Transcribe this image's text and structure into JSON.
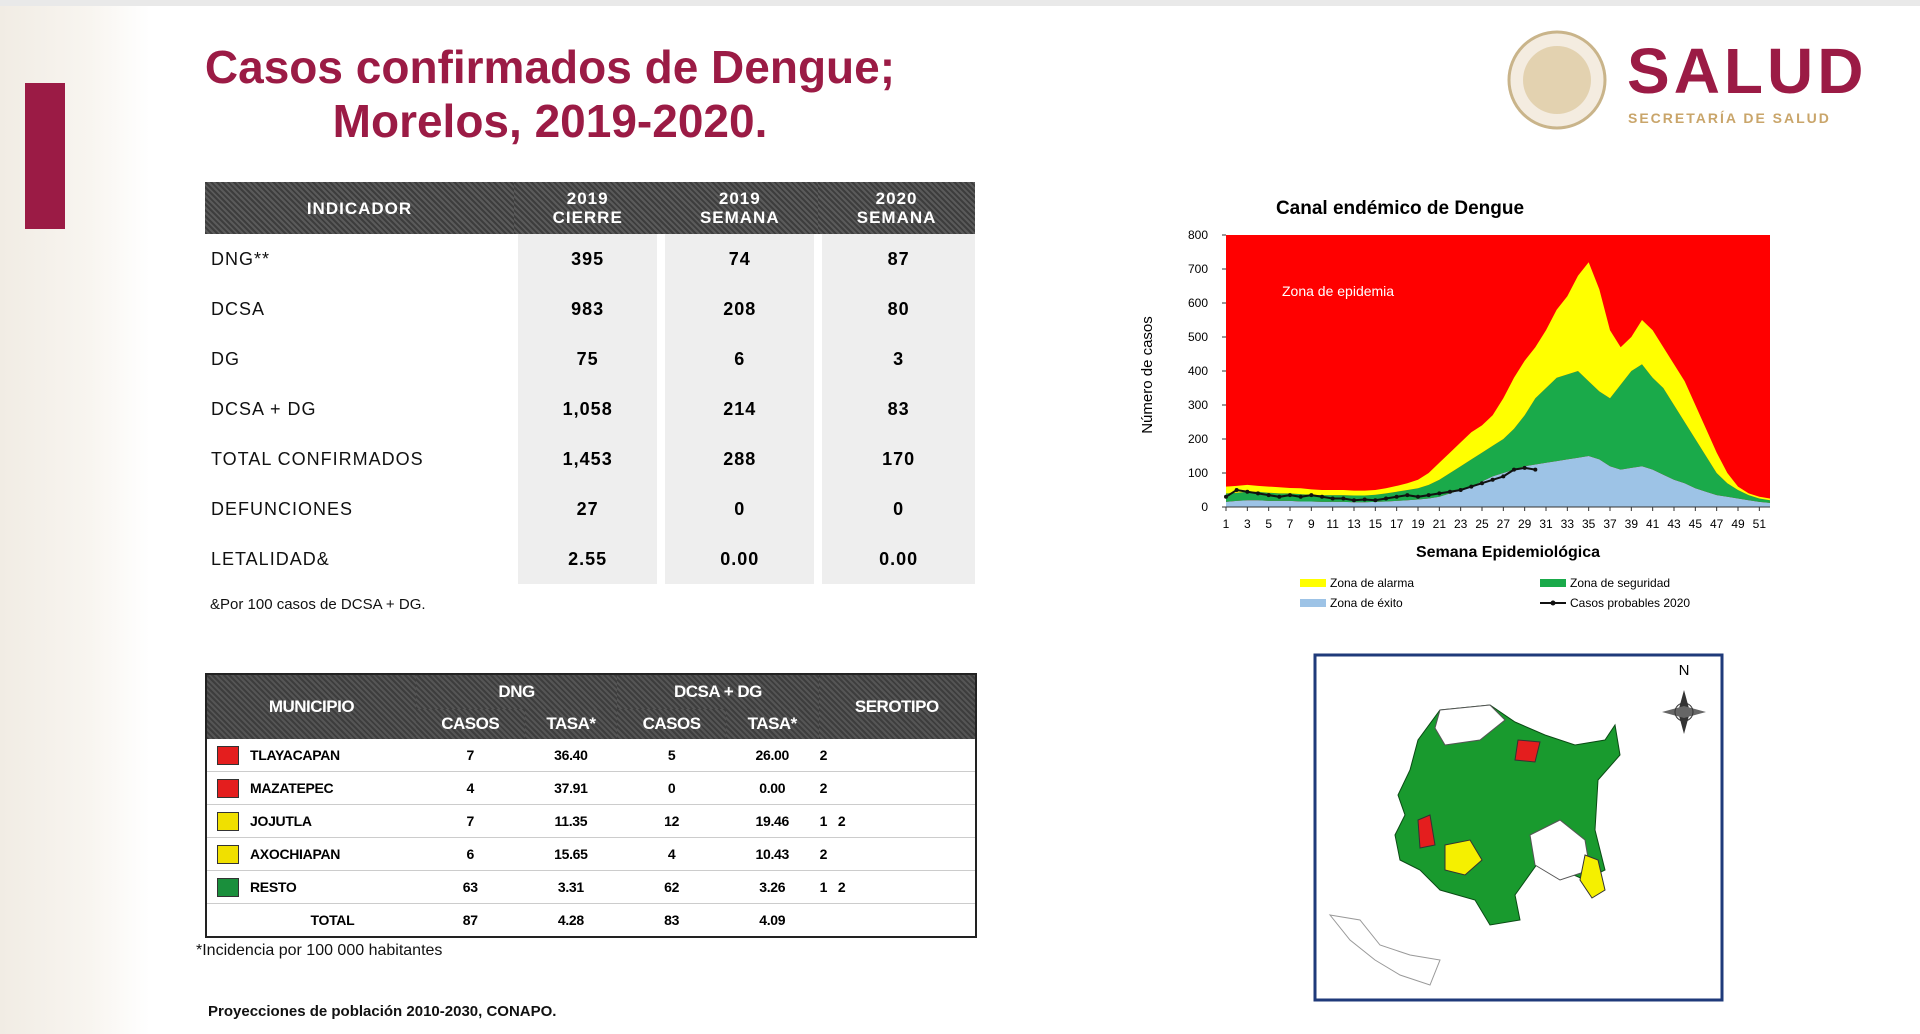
{
  "header": {
    "title_line1": "Casos confirmados de Dengue;",
    "title_line2": "Morelos, 2019-2020.",
    "logo_title": "SALUD",
    "logo_subtitle": "SECRETARÍA DE SALUD"
  },
  "indicator_table": {
    "columns": [
      "INDICADOR",
      "2019 CIERRE",
      "2019 SEMANA",
      "2020 SEMANA"
    ],
    "rows": [
      [
        "DNG**",
        "395",
        "74",
        "87"
      ],
      [
        "DCSA",
        "983",
        "208",
        "80"
      ],
      [
        "DG",
        "75",
        "6",
        "3"
      ],
      [
        "DCSA + DG",
        "1,058",
        "214",
        "83"
      ],
      [
        "TOTAL CONFIRMADOS",
        "1,453",
        "288",
        "170"
      ],
      [
        "DEFUNCIONES",
        "27",
        "0",
        "0"
      ],
      [
        "LETALIDAD&",
        "2.55",
        "0.00",
        "0.00"
      ]
    ],
    "footnote": "&Por 100 casos de DCSA + DG."
  },
  "municipio_table": {
    "header": {
      "municipio": "MUNICIPIO",
      "dng": "DNG",
      "dcsa_dg": "DCSA + DG",
      "serotipo": "SEROTIPO",
      "casos": "CASOS",
      "tasa": "TASA*"
    },
    "rows": [
      {
        "color": "#e41e1e",
        "cells": [
          "TLAYACAPAN",
          "7",
          "36.40",
          "5",
          "26.00",
          "2"
        ]
      },
      {
        "color": "#e41e1e",
        "cells": [
          "MAZATEPEC",
          "4",
          "37.91",
          "0",
          "0.00",
          "2"
        ]
      },
      {
        "color": "#f0e000",
        "cells": [
          "JOJUTLA",
          "7",
          "11.35",
          "12",
          "19.46",
          "1   2"
        ]
      },
      {
        "color": "#f0e000",
        "cells": [
          "AXOCHIAPAN",
          "6",
          "15.65",
          "4",
          "10.43",
          "2"
        ]
      },
      {
        "color": "#1a8f3c",
        "cells": [
          "RESTO",
          "63",
          "3.31",
          "62",
          "3.26",
          "1   2"
        ]
      },
      {
        "cells": [
          "TOTAL",
          "87",
          "4.28",
          "83",
          "4.09"
        ]
      }
    ],
    "note": "*Incidencia por 100 000 habitantes",
    "source": "Proyecciones de población 2010-2030,  CONAPO."
  },
  "chart_data": {
    "type": "area",
    "title": "Canal endémico de Dengue",
    "xlabel": "Semana Epidemiológica",
    "ylabel": "Número de casos",
    "annotation": "Zona de epidemia",
    "epidemic_color": "#ff0000",
    "stacked": true,
    "x": [
      1,
      2,
      3,
      4,
      5,
      6,
      7,
      8,
      9,
      10,
      11,
      12,
      13,
      14,
      15,
      16,
      17,
      18,
      19,
      20,
      21,
      22,
      23,
      24,
      25,
      26,
      27,
      28,
      29,
      30,
      31,
      32,
      33,
      34,
      35,
      36,
      37,
      38,
      39,
      40,
      41,
      42,
      43,
      44,
      45,
      46,
      47,
      48,
      49,
      50,
      51,
      52
    ],
    "xlim": [
      1,
      52
    ],
    "xticks": [
      1,
      3,
      5,
      7,
      9,
      11,
      13,
      15,
      17,
      19,
      21,
      23,
      25,
      27,
      29,
      31,
      33,
      35,
      37,
      39,
      41,
      43,
      45,
      47,
      49,
      51
    ],
    "ylim": [
      0,
      800
    ],
    "yticks": [
      0,
      100,
      200,
      300,
      400,
      500,
      600,
      700,
      800
    ],
    "series": [
      {
        "name": "Zona de éxito",
        "color": "#9dc3e6",
        "values": [
          15,
          18,
          20,
          20,
          18,
          18,
          18,
          16,
          16,
          15,
          15,
          15,
          14,
          14,
          15,
          16,
          18,
          20,
          22,
          25,
          30,
          40,
          50,
          60,
          75,
          90,
          100,
          110,
          120,
          125,
          130,
          135,
          140,
          145,
          150,
          140,
          120,
          110,
          115,
          120,
          110,
          95,
          80,
          70,
          55,
          45,
          35,
          30,
          25,
          20,
          15,
          12
        ]
      },
      {
        "name": "Zona de seguridad",
        "color": "#1aaa4a",
        "values": [
          25,
          24,
          25,
          25,
          24,
          22,
          22,
          22,
          20,
          20,
          20,
          20,
          20,
          20,
          21,
          24,
          27,
          30,
          33,
          40,
          50,
          60,
          70,
          80,
          85,
          90,
          100,
          120,
          150,
          195,
          220,
          245,
          250,
          255,
          220,
          200,
          200,
          250,
          285,
          300,
          270,
          255,
          220,
          180,
          145,
          105,
          65,
          40,
          25,
          15,
          10,
          8
        ]
      },
      {
        "name": "Zona de alarma",
        "color": "#ffff00",
        "values": [
          20,
          20,
          20,
          17,
          18,
          18,
          16,
          17,
          16,
          15,
          15,
          15,
          14,
          14,
          14,
          15,
          17,
          20,
          25,
          35,
          50,
          60,
          70,
          80,
          80,
          90,
          120,
          150,
          160,
          150,
          170,
          200,
          230,
          280,
          350,
          300,
          200,
          110,
          100,
          130,
          140,
          120,
          120,
          120,
          100,
          80,
          60,
          30,
          10,
          5,
          5,
          5
        ]
      },
      {
        "name": "Casos probables 2020",
        "color": "#111111",
        "line": true,
        "values": [
          30,
          50,
          45,
          40,
          35,
          30,
          35,
          30,
          35,
          30,
          25,
          25,
          20,
          22,
          20,
          25,
          30,
          35,
          30,
          35,
          40,
          45,
          50,
          60,
          70,
          80,
          90,
          110,
          115,
          110,
          null,
          null,
          null,
          null,
          null,
          null,
          null,
          null,
          null,
          null,
          null,
          null,
          null,
          null,
          null,
          null,
          null,
          null,
          null,
          null,
          null,
          null
        ]
      }
    ]
  }
}
